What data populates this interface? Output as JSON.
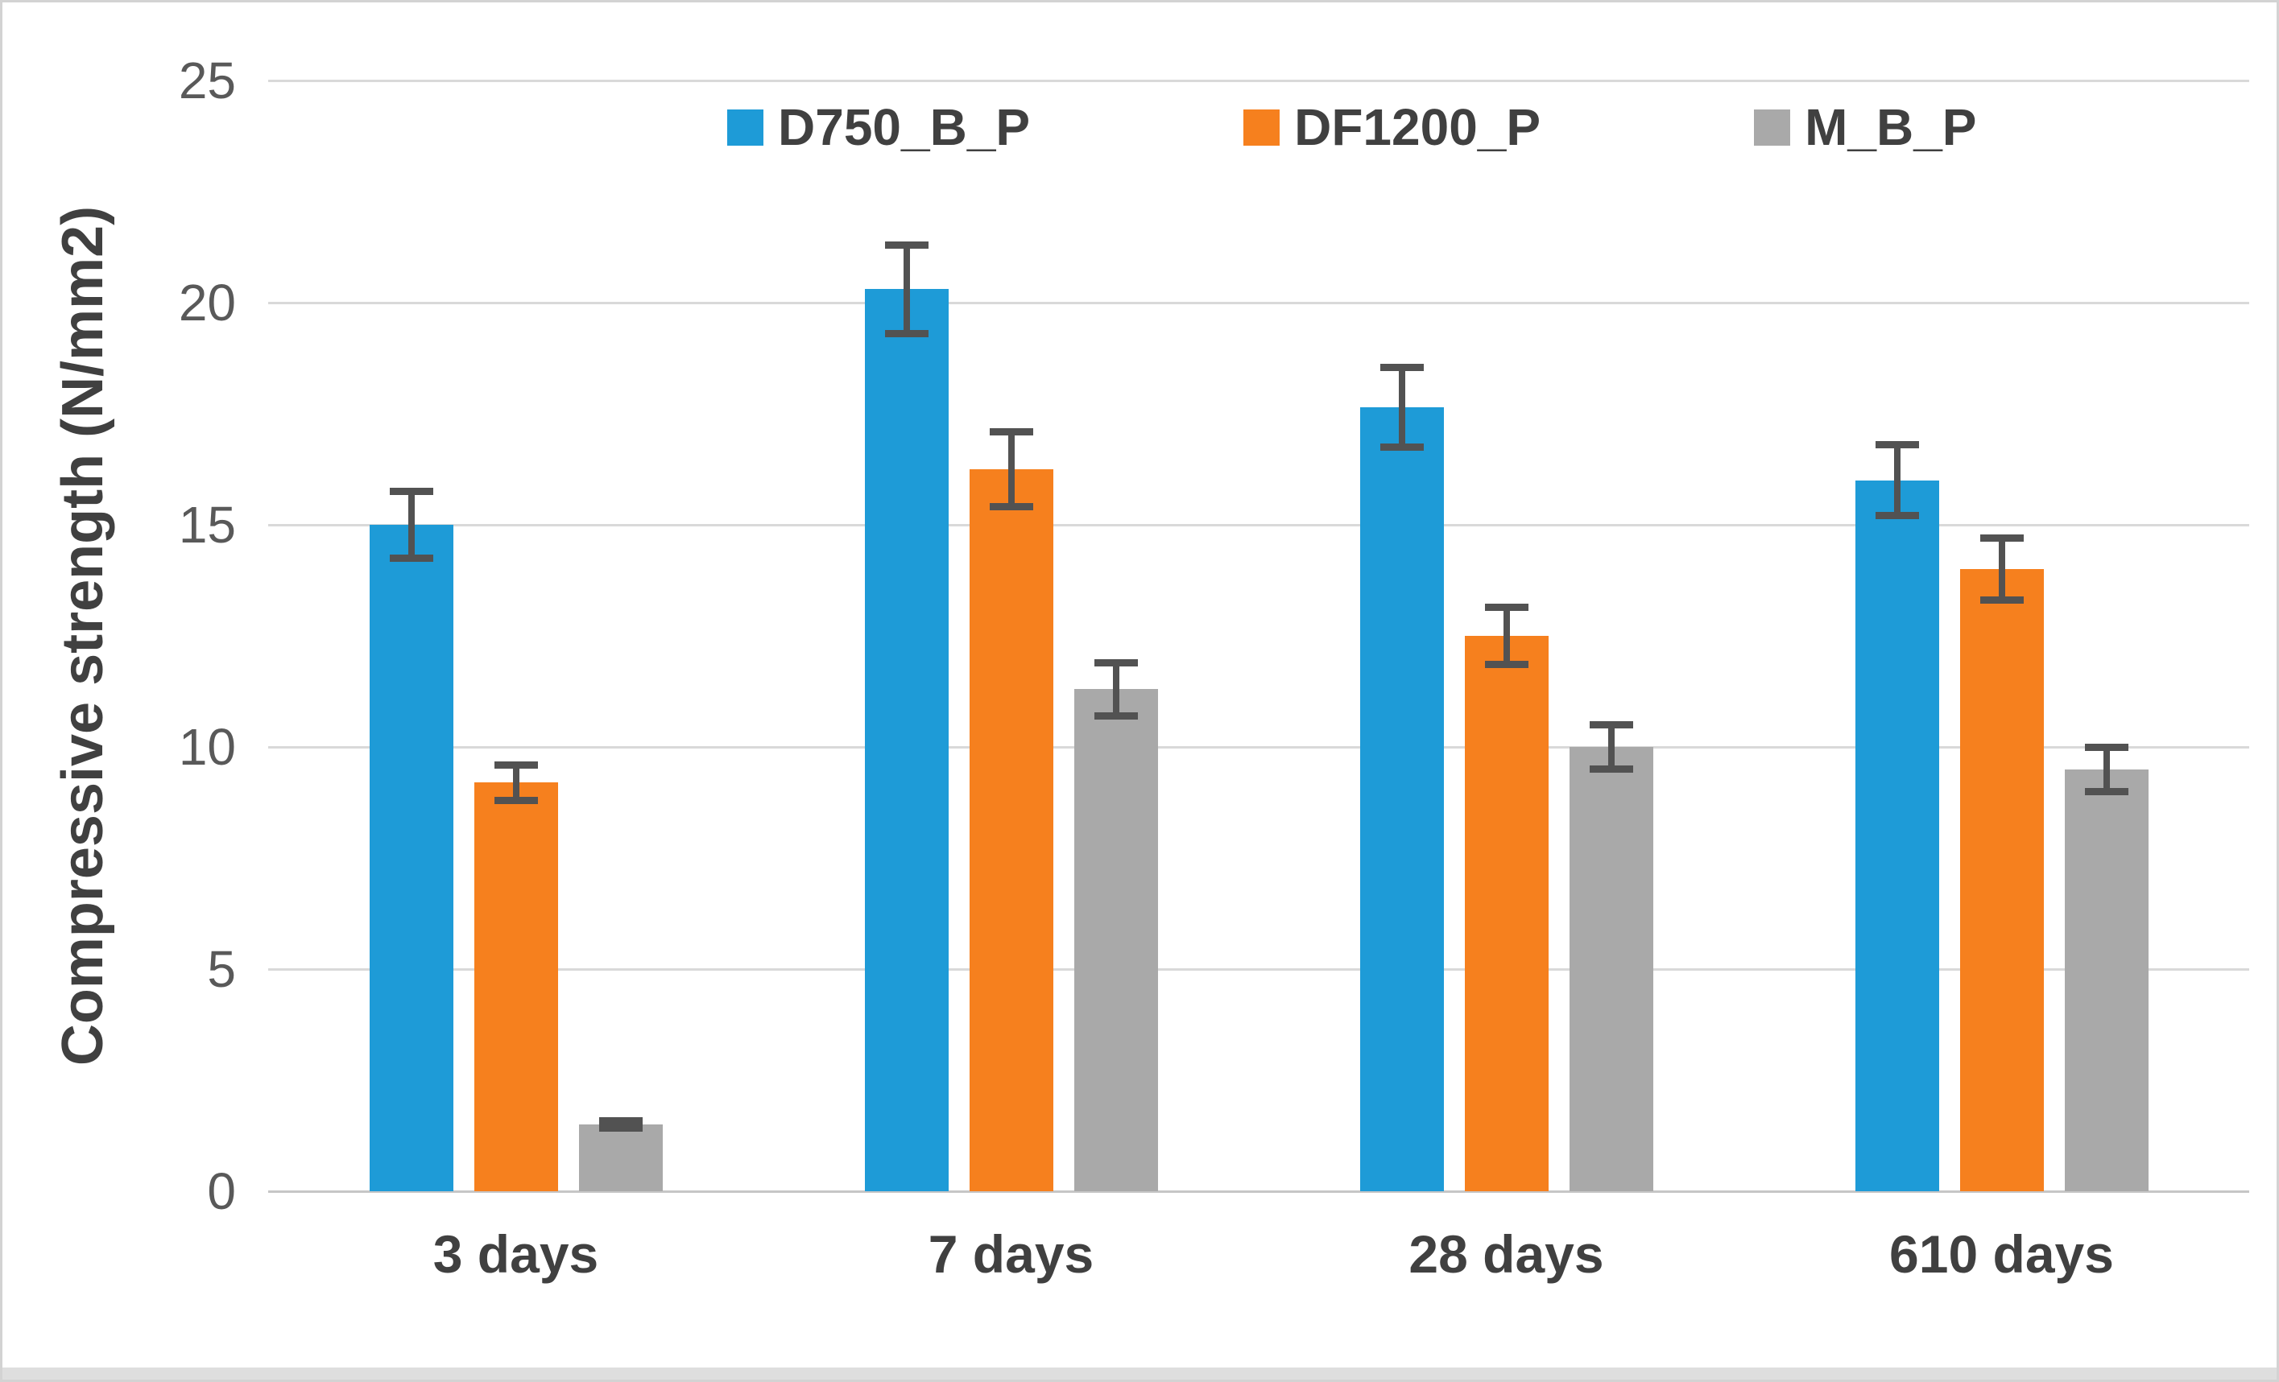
{
  "chart_data": {
    "type": "bar",
    "title": "",
    "xlabel": "",
    "ylabel": "Compressive strength (N/mm2)",
    "ylim": [
      0,
      25
    ],
    "yticks": [
      0,
      5,
      10,
      15,
      20,
      25
    ],
    "grid": "horizontal",
    "legend_position": "top-center",
    "error_bars": true,
    "categories": [
      "3 days",
      "7 days",
      "28 days",
      "610 days"
    ],
    "series": [
      {
        "name": "D750_B_P",
        "color": "#1E9BD7",
        "values": [
          15.0,
          20.3,
          17.65,
          16.0
        ],
        "errors": [
          0.75,
          1.0,
          0.9,
          0.8
        ]
      },
      {
        "name": "DF1200_P",
        "color": "#F6801E",
        "values": [
          9.2,
          16.25,
          12.5,
          14.0
        ],
        "errors": [
          0.4,
          0.85,
          0.65,
          0.7
        ]
      },
      {
        "name": "M_B_P",
        "color": "#A9A9A9",
        "values": [
          1.5,
          11.3,
          10.0,
          9.5
        ],
        "errors": [
          0.08,
          0.6,
          0.5,
          0.5
        ]
      }
    ]
  },
  "styles": {
    "background": "#FFFFFF",
    "border_color": "#D3D3D3",
    "gridline_color": "#D9D9D9",
    "axis_line_color": "#C6C6C6",
    "error_bar_color": "#525252",
    "tick_text_color": "#595959",
    "label_text_color": "#404040"
  }
}
